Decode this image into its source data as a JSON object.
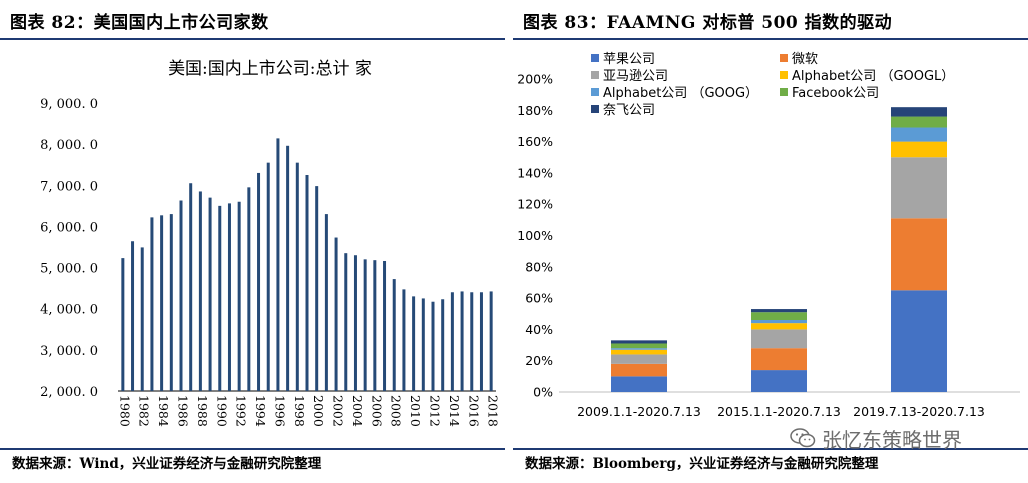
{
  "left": {
    "figure_title": "图表 82：美国国内上市公司家数",
    "source": "数据来源：Wind，兴业证券经济与金融研究院整理"
  },
  "right": {
    "figure_title": "图表 83：FAAMNG 对标普 500 指数的驱动",
    "source": "数据来源：Bloomberg，兴业证券经济与金融研究院整理"
  },
  "watermark": {
    "text": "张忆东策略世界",
    "icon": "wechat-icon",
    "color": "#6d6d6d"
  },
  "chart_data": [
    {
      "type": "bar",
      "title": "美国:国内上市公司:总计  家",
      "xlabel": "",
      "ylabel": "",
      "ylim": [
        2000,
        9000
      ],
      "yticks": [
        2000,
        3000,
        4000,
        5000,
        6000,
        7000,
        8000,
        9000
      ],
      "ytick_labels": [
        "2, 000. 0",
        "3, 000. 0",
        "4, 000. 0",
        "5, 000. 0",
        "6, 000. 0",
        "7, 000. 0",
        "8, 000. 0",
        "9, 000. 0"
      ],
      "xtick_labels": [
        "1980",
        "1982",
        "1984",
        "1986",
        "1988",
        "1990",
        "1992",
        "1994",
        "1996",
        "1998",
        "2000",
        "2002",
        "2004",
        "2006",
        "2008",
        "2010",
        "2012",
        "2014",
        "2016",
        "2018"
      ],
      "categories": [
        "1980",
        "1981",
        "1982",
        "1983",
        "1984",
        "1985",
        "1986",
        "1987",
        "1988",
        "1989",
        "1990",
        "1991",
        "1992",
        "1993",
        "1994",
        "1995",
        "1996",
        "1997",
        "1998",
        "1999",
        "2000",
        "2001",
        "2002",
        "2003",
        "2004",
        "2005",
        "2006",
        "2007",
        "2008",
        "2009",
        "2010",
        "2011",
        "2012",
        "2013",
        "2014",
        "2015",
        "2016",
        "2017",
        "2018"
      ],
      "values": [
        5230,
        5640,
        5490,
        6220,
        6270,
        6300,
        6630,
        7050,
        6850,
        6700,
        6500,
        6560,
        6600,
        6950,
        7300,
        7550,
        8140,
        7960,
        7550,
        7250,
        6980,
        6300,
        5730,
        5350,
        5300,
        5200,
        5180,
        5160,
        4720,
        4470,
        4300,
        4250,
        4170,
        4230,
        4400,
        4420,
        4400,
        4400,
        4420
      ],
      "color": "#264a77"
    },
    {
      "type": "bar",
      "stacked": true,
      "title": "",
      "xlabel": "",
      "ylabel": "",
      "ylim": [
        0,
        200
      ],
      "yticks": [
        0,
        20,
        40,
        60,
        80,
        100,
        120,
        140,
        160,
        180,
        200
      ],
      "ytick_labels": [
        "0%",
        "20%",
        "40%",
        "60%",
        "80%",
        "100%",
        "120%",
        "140%",
        "160%",
        "180%",
        "200%"
      ],
      "categories": [
        "2009.1.1-2020.7.13",
        "2015.1.1-2020.7.13",
        "2019.7.13-2020.7.13"
      ],
      "legend_position": "top-left",
      "series": [
        {
          "name": "苹果公司",
          "color": "#4472c4",
          "values": [
            10,
            14,
            65
          ]
        },
        {
          "name": "微软",
          "color": "#ed7d31",
          "values": [
            8,
            14,
            46
          ]
        },
        {
          "name": "亚马逊公司",
          "color": "#a5a5a5",
          "values": [
            6,
            12,
            39
          ]
        },
        {
          "name": "Alphabet公司 （GOOGL）",
          "color": "#ffc000",
          "values": [
            3,
            4,
            10
          ]
        },
        {
          "name": "Alphabet公司 （GOOG）",
          "color": "#5b9bd5",
          "values": [
            1,
            2,
            9
          ]
        },
        {
          "name": "Facebook公司",
          "color": "#70ad47",
          "values": [
            3,
            5,
            7
          ]
        },
        {
          "name": "奈飞公司",
          "color": "#264478",
          "values": [
            2,
            2,
            6
          ]
        }
      ]
    }
  ]
}
